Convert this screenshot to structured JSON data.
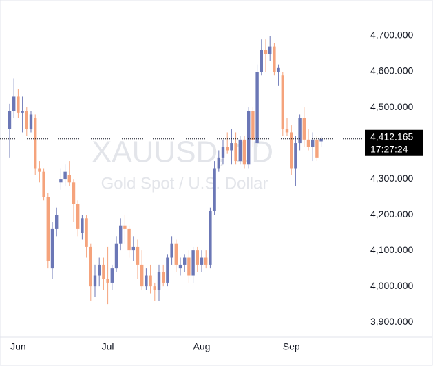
{
  "chart_data": {
    "type": "candlestick",
    "title": "XAUUSD, 1D",
    "subtitle": "Gold Spot / U.S. Dollar",
    "categories": [
      null,
      null,
      "Jun",
      null,
      null,
      null,
      null,
      null,
      null,
      null,
      null,
      null,
      null,
      null,
      null,
      null,
      null,
      null,
      null,
      null,
      null,
      null,
      null,
      "Jul",
      null,
      null,
      null,
      null,
      null,
      null,
      null,
      null,
      null,
      null,
      null,
      null,
      null,
      null,
      null,
      null,
      null,
      null,
      null,
      null,
      null,
      "Aug",
      null,
      null,
      null,
      null,
      null,
      null,
      null,
      null,
      null,
      null,
      null,
      null,
      null,
      null,
      null,
      null,
      null,
      null,
      null,
      null,
      "Sep",
      null,
      null,
      null,
      null,
      null,
      null,
      null
    ],
    "open": [
      4440,
      4490,
      4530,
      4485,
      4490,
      4440,
      4470,
      4330,
      4320,
      4250,
      4050,
      4160,
      4290,
      4300,
      4310,
      4290,
      4230,
      4150,
      4190,
      4110,
      4000,
      4030,
      4060,
      4020,
      4010,
      4050,
      4120,
      4170,
      4160,
      4100,
      4110,
      4060,
      4000,
      4030,
      4000,
      3990,
      4040,
      4010,
      4080,
      4120,
      4050,
      4060,
      4080,
      4030,
      4100,
      4060,
      4080,
      4060,
      4210,
      4330,
      4360,
      4390,
      4380,
      4400,
      4350,
      4410,
      4340,
      4490,
      4400,
      4600,
      4660,
      4650,
      4670,
      4600,
      4590,
      4440,
      4430,
      4330,
      4400,
      4470,
      4410,
      4390,
      4410,
      4405
    ],
    "high": [
      4510,
      4580,
      4550,
      4530,
      4500,
      4490,
      4480,
      4350,
      4330,
      4260,
      4180,
      4220,
      4330,
      4340,
      4350,
      4300,
      4240,
      4200,
      4200,
      4120,
      4060,
      4080,
      4080,
      4110,
      4060,
      4140,
      4190,
      4200,
      4170,
      4140,
      4130,
      4100,
      4050,
      4060,
      4010,
      4060,
      4060,
      4090,
      4140,
      4130,
      4080,
      4090,
      4100,
      4110,
      4110,
      4100,
      4100,
      4220,
      4350,
      4380,
      4410,
      4430,
      4440,
      4430,
      4420,
      4420,
      4500,
      4500,
      4620,
      4690,
      4690,
      4700,
      4680,
      4620,
      4600,
      4470,
      4450,
      4420,
      4480,
      4500,
      4440,
      4430,
      4420,
      4420
    ],
    "low": [
      4360,
      4470,
      4470,
      4430,
      4420,
      4430,
      4310,
      4290,
      4240,
      4050,
      4020,
      4140,
      4270,
      4280,
      4280,
      4180,
      4140,
      4130,
      4080,
      3960,
      3970,
      4000,
      3990,
      3950,
      3990,
      4040,
      4100,
      4120,
      4080,
      4070,
      4020,
      3990,
      3990,
      3980,
      3960,
      3960,
      4000,
      4000,
      4060,
      4040,
      4030,
      4040,
      4010,
      4010,
      4040,
      4040,
      4050,
      4050,
      4200,
      4320,
      4340,
      4370,
      4340,
      4340,
      4340,
      4330,
      4330,
      4390,
      4390,
      4590,
      4600,
      4630,
      4590,
      4560,
      4420,
      4420,
      4310,
      4280,
      4380,
      4390,
      4380,
      4350,
      4350,
      4390
    ],
    "close": [
      4490,
      4530,
      4485,
      4490,
      4440,
      4480,
      4330,
      4320,
      4250,
      4070,
      4160,
      4200,
      4300,
      4320,
      4290,
      4230,
      4160,
      4190,
      4110,
      4000,
      4030,
      4060,
      4020,
      4010,
      4050,
      4120,
      4170,
      4160,
      4100,
      4110,
      4060,
      4000,
      4030,
      4000,
      3990,
      4040,
      4010,
      4080,
      4120,
      4060,
      4060,
      4080,
      4030,
      4100,
      4060,
      4080,
      4060,
      4210,
      4330,
      4360,
      4390,
      4380,
      4400,
      4350,
      4410,
      4340,
      4490,
      4410,
      4600,
      4660,
      4650,
      4670,
      4600,
      4610,
      4440,
      4430,
      4330,
      4400,
      4470,
      4410,
      4390,
      4410,
      4360,
      4412.165
    ],
    "up_color": "#6b77b6",
    "down_color": "#f5a37c",
    "ylim": [
      3858,
      4800
    ],
    "yticks": [
      {
        "value": 3900,
        "label": "3,900.000"
      },
      {
        "value": 4000,
        "label": "4,000.000"
      },
      {
        "value": 4100,
        "label": "4,100.000"
      },
      {
        "value": 4200,
        "label": "4,200.000"
      },
      {
        "value": 4300,
        "label": "4,300.000"
      },
      {
        "value": 4400,
        "label": "4,400.000"
      },
      {
        "value": 4500,
        "label": "4,500.000"
      },
      {
        "value": 4600,
        "label": "4,600.000"
      },
      {
        "value": 4700,
        "label": "4,700.000"
      }
    ],
    "last_price": {
      "value": 4412.165,
      "label": "4,412.165"
    },
    "countdown": "17:27:24"
  }
}
